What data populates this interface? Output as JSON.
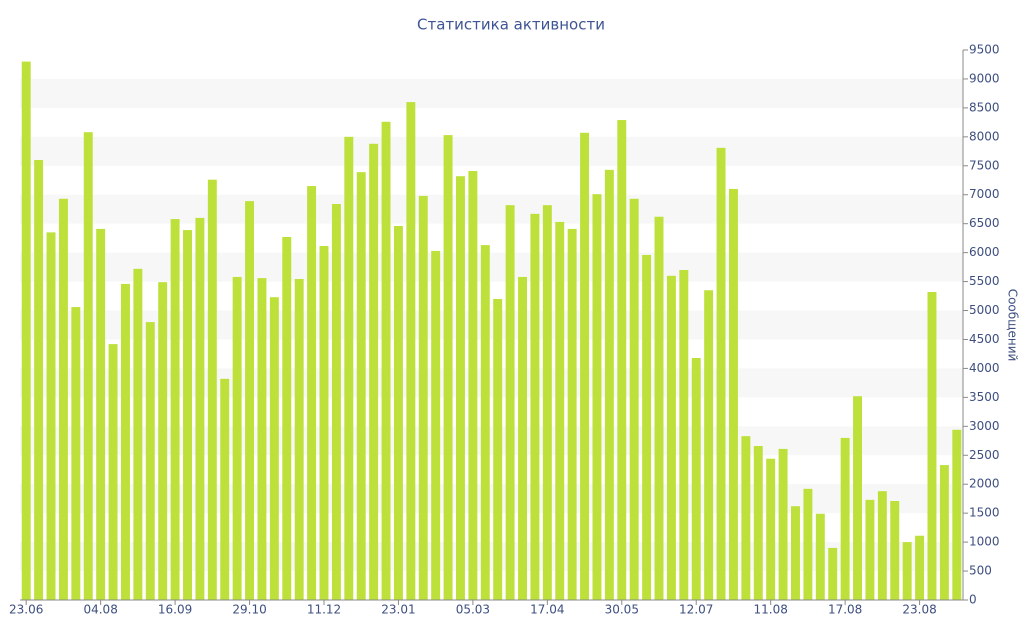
{
  "chart_data": {
    "type": "bar",
    "title": "Статистика активности",
    "y_label": "Сообщений",
    "categories": [
      "23.06",
      null,
      null,
      null,
      null,
      null,
      "04.08",
      null,
      null,
      null,
      null,
      null,
      "16.09",
      null,
      null,
      null,
      null,
      null,
      "29.10",
      null,
      null,
      null,
      null,
      null,
      "11.12",
      null,
      null,
      null,
      null,
      null,
      "23.01",
      null,
      null,
      null,
      null,
      null,
      "05.03",
      null,
      null,
      null,
      null,
      null,
      "17.04",
      null,
      null,
      null,
      null,
      null,
      "30.05",
      null,
      null,
      null,
      null,
      null,
      "12.07",
      null,
      null,
      null,
      null,
      null,
      "11.08",
      null,
      null,
      null,
      null,
      null,
      "17.08",
      null,
      null,
      null,
      null,
      null,
      "23.08",
      null,
      null,
      null
    ],
    "values": [
      9300,
      7600,
      6350,
      6930,
      5060,
      8080,
      6410,
      4420,
      5460,
      5720,
      4800,
      5490,
      6580,
      6390,
      6600,
      7260,
      3820,
      5580,
      6890,
      5560,
      5230,
      6270,
      5545,
      7150,
      6115,
      6840,
      8000,
      7390,
      7880,
      8260,
      6460,
      8600,
      6980,
      6030,
      8030,
      7320,
      7410,
      6130,
      5200,
      6820,
      5580,
      6670,
      6820,
      6530,
      6410,
      8070,
      7010,
      7430,
      8290,
      6930,
      5960,
      6620,
      5600,
      5700,
      4180,
      5350,
      7810,
      7100,
      2830,
      2660,
      2440,
      2610,
      1620,
      1920,
      1490,
      900,
      2800,
      3520,
      1730,
      1880,
      1710,
      1000,
      1110,
      5320,
      2330,
      2940
    ],
    "color": "#bde03a",
    "ylim": [
      0,
      9500
    ],
    "yticks": [
      0,
      500,
      1000,
      1500,
      2000,
      2500,
      3000,
      3500,
      4000,
      4500,
      5000,
      5500,
      6000,
      6500,
      7000,
      7500,
      8000,
      8500,
      9000,
      9500
    ],
    "grid": "bands",
    "y_axis_side": "right"
  }
}
